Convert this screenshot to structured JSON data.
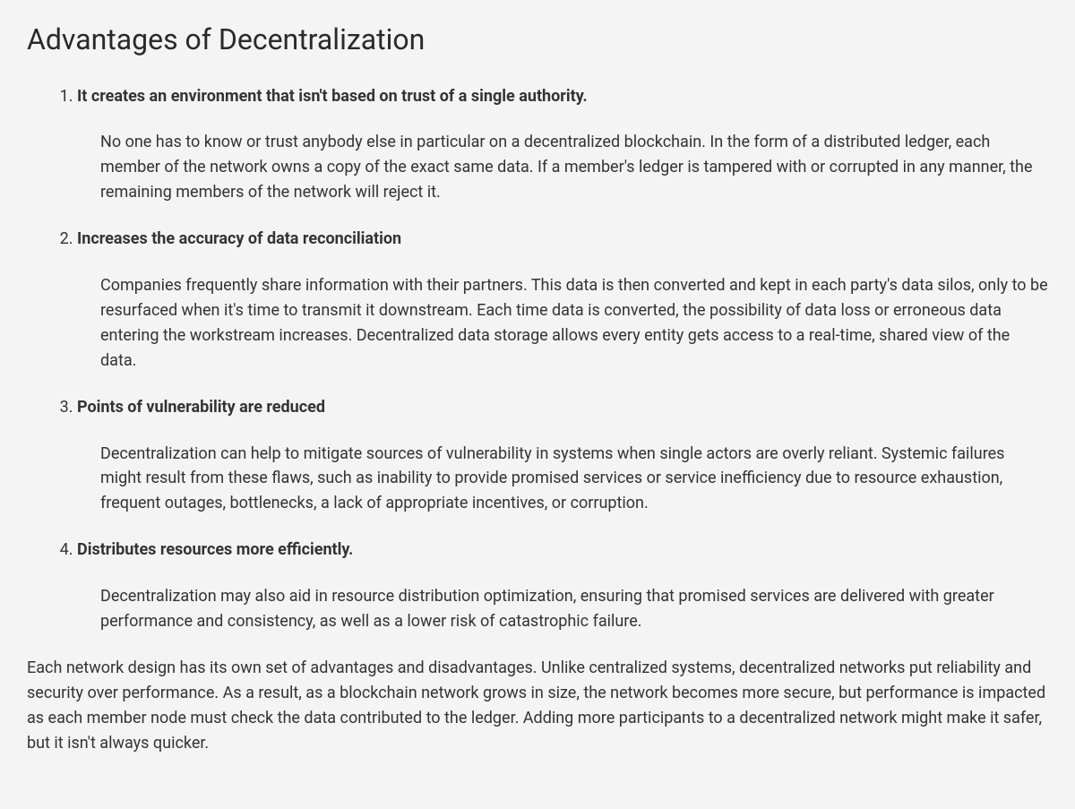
{
  "heading": "Advantages of Decentralization",
  "items": [
    {
      "title": "It creates an environment that isn't based on trust of a single authority.",
      "body": "No one has to know or trust anybody else in particular on a decentralized blockchain. In the form of a distributed ledger, each member of the network owns a copy of the exact same data. If a member's ledger is tampered with or corrupted in any manner, the remaining members of the network will reject it."
    },
    {
      "title": "Increases the accuracy of data reconciliation",
      "body": "Companies frequently share information with their partners. This data is then converted and kept in each party's data silos, only to be resurfaced when it's time to transmit it downstream. Each time data is converted, the possibility of data loss or erroneous data entering the workstream increases. Decentralized data storage allows every entity gets access to a real-time, shared view of the data."
    },
    {
      "title": "Points of vulnerability are reduced",
      "body": "Decentralization can help to mitigate sources of vulnerability in systems when single actors are overly reliant. Systemic failures might result from these flaws, such as inability to provide promised services or service inefficiency due to resource exhaustion, frequent outages, bottlenecks, a lack of appropriate incentives, or corruption."
    },
    {
      "title": "Distributes resources more efficiently.",
      "body": "Decentralization may also aid in resource distribution optimization, ensuring that promised services are delivered with greater performance and consistency, as well as a lower risk of catastrophic failure."
    }
  ],
  "closing": "Each network design has its own set of advantages and disadvantages. Unlike centralized systems, decentralized networks put reliability and security over performance. As a result, as a blockchain network grows in size, the network becomes more secure, but performance is impacted as each member node must check the data contributed to the ledger. Adding more participants to a decentralized network might make it safer, but it isn't always quicker."
}
